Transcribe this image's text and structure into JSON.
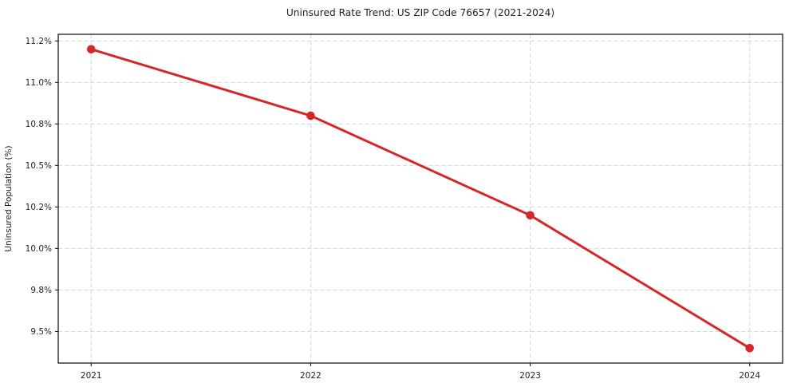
{
  "chart_data": {
    "type": "line",
    "title": "Uninsured Rate Trend: US ZIP Code 76657 (2021-2024)",
    "xlabel": "",
    "ylabel": "Uninsured Population (%)",
    "x": [
      2021,
      2022,
      2023,
      2024
    ],
    "y": [
      11.2,
      10.8,
      10.2,
      9.4
    ],
    "xlim": [
      2020.85,
      2024.15
    ],
    "ylim": [
      9.31,
      11.29
    ],
    "xticks": [
      2021,
      2022,
      2023,
      2024
    ],
    "xtick_labels": [
      "2021",
      "2022",
      "2023",
      "2024"
    ],
    "yticks": [
      9.5,
      9.75,
      10.0,
      10.25,
      10.5,
      10.75,
      11.0,
      11.25
    ],
    "ytick_labels": [
      "9.5%",
      "9.8%",
      "10.0%",
      "10.2%",
      "10.5%",
      "10.8%",
      "11.0%",
      "11.2%"
    ],
    "grid": true,
    "legend": "none",
    "line_color": "#d62728",
    "marker": "circle",
    "marker_color": "#d62728",
    "grid_color": "#d6d6d6",
    "spine_color": "#1a1a1a",
    "text_color": "#1f1f1f",
    "background": "#ffffff"
  }
}
